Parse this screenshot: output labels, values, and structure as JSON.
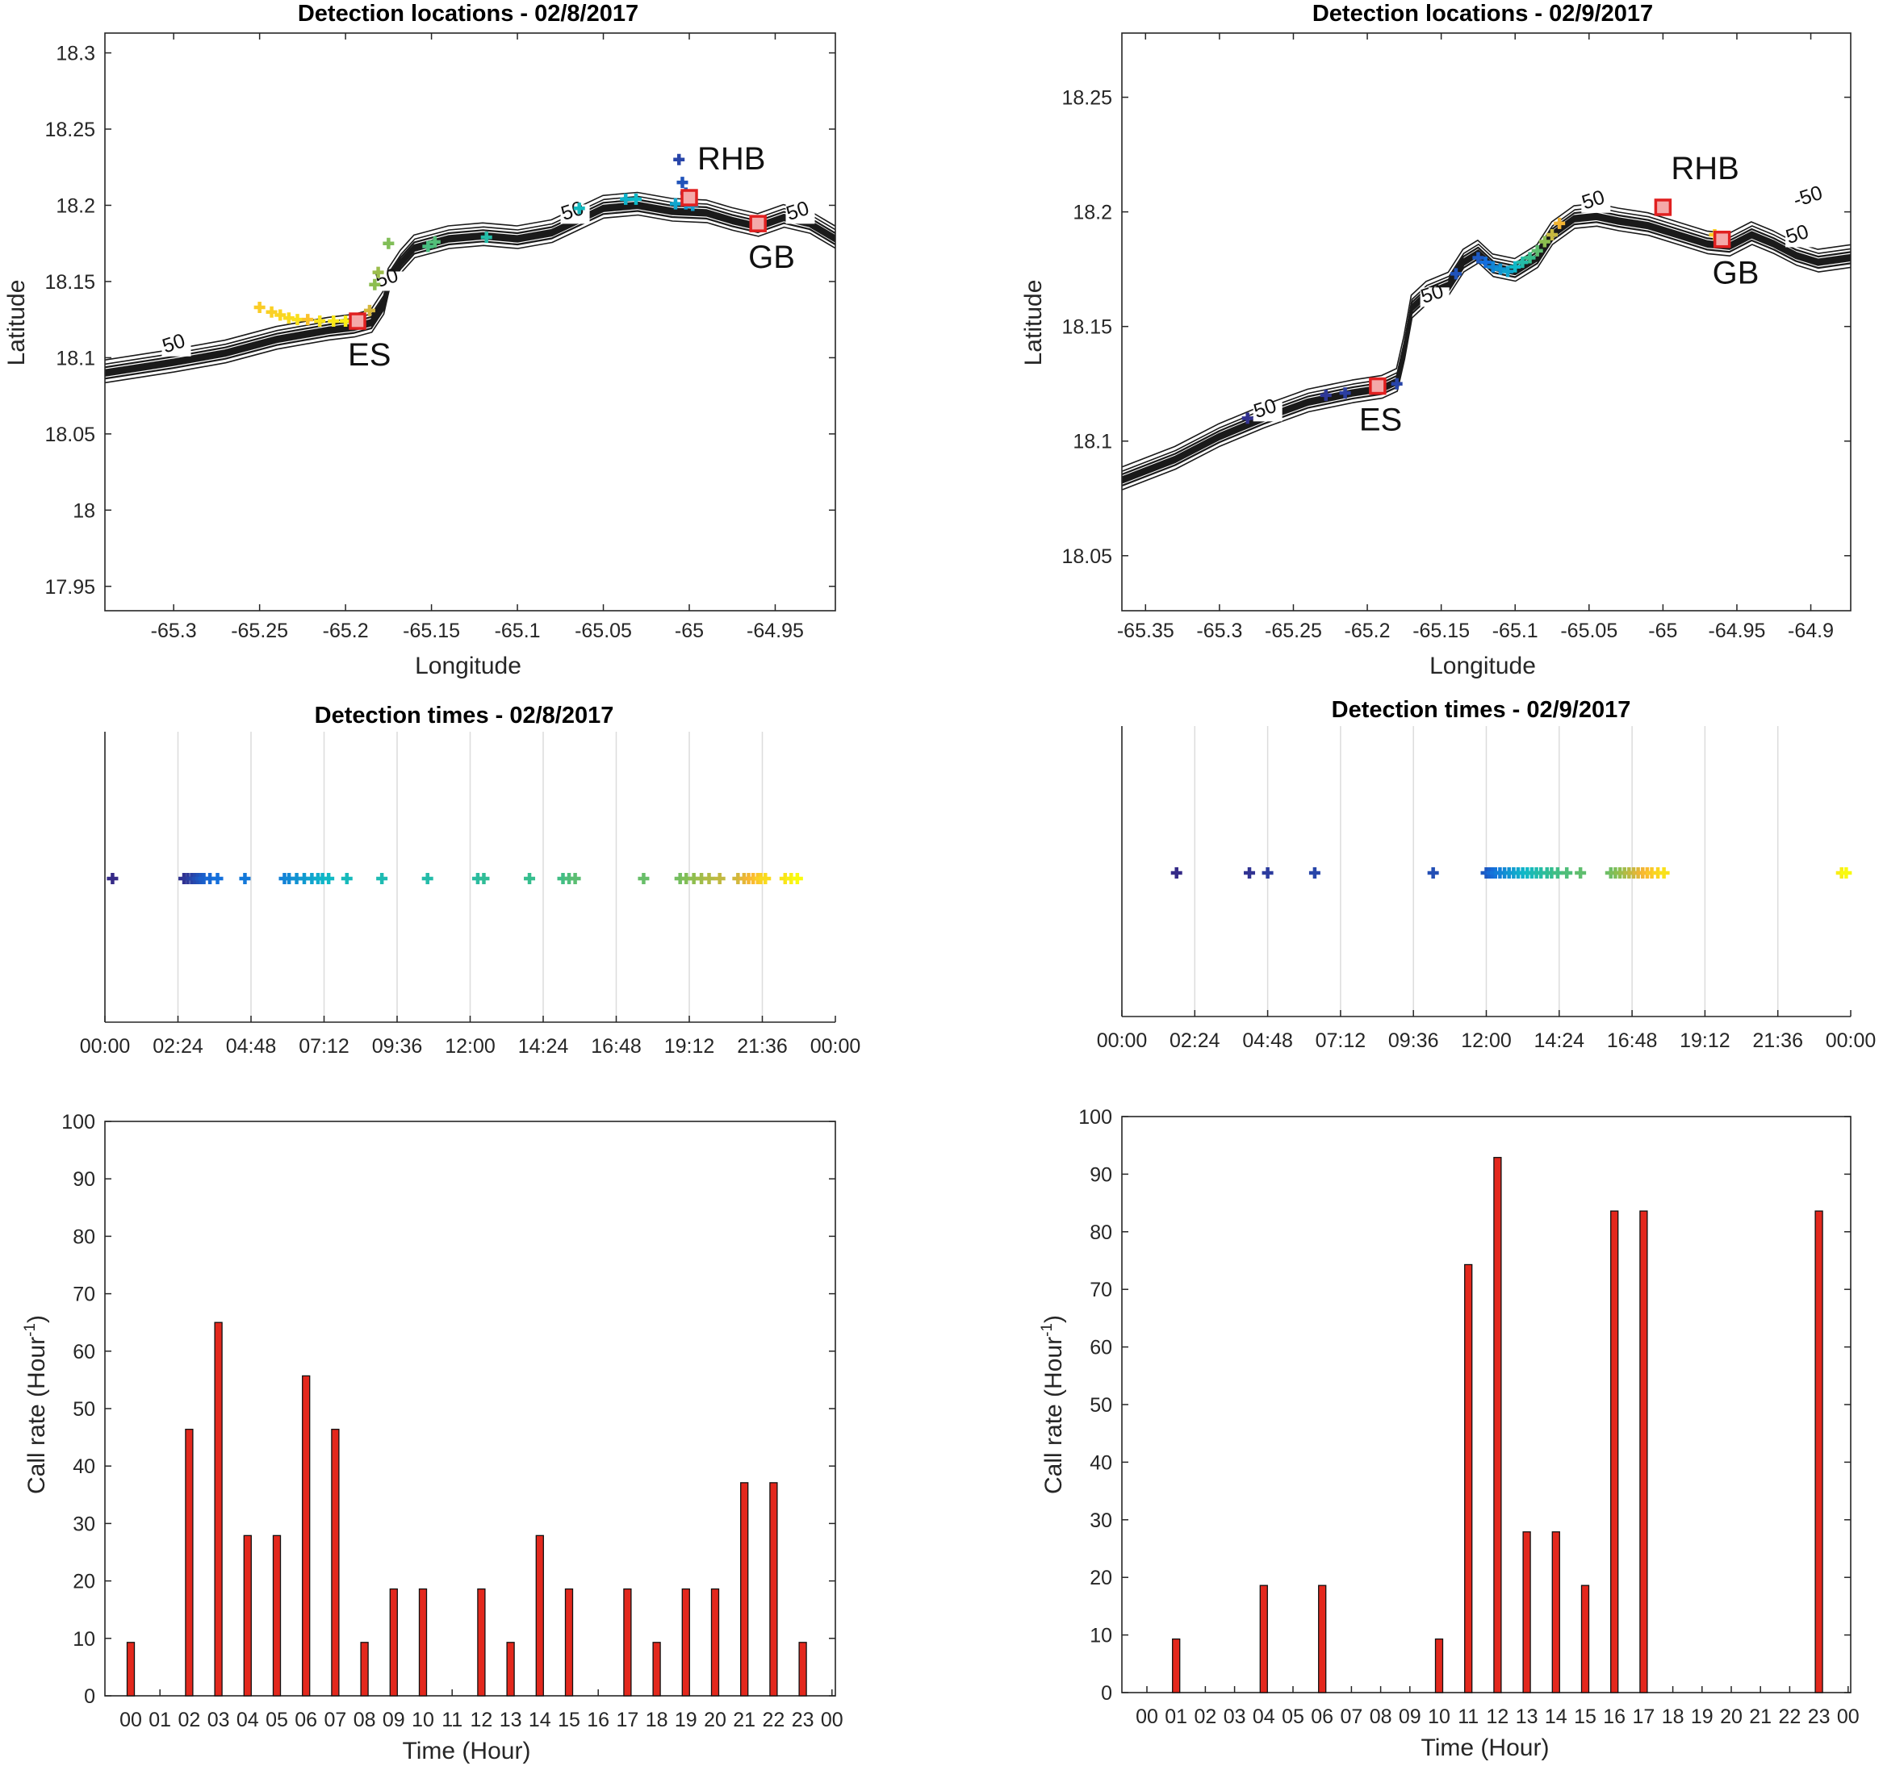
{
  "chart_data": [
    {
      "id": "map1",
      "type": "scatter",
      "title": "Detection locations - 02/8/2017",
      "xlabel": "Longitude",
      "ylabel": "Latitude",
      "xlim": [
        -65.34,
        -64.915
      ],
      "ylim": [
        17.934,
        18.313
      ],
      "xticks": [
        -65.3,
        -65.25,
        -65.2,
        -65.15,
        -65.1,
        -65.05,
        -65,
        -64.95
      ],
      "xticklabels": [
        "-65.3",
        "-65.25",
        "-65.2",
        "-65.15",
        "-65.1",
        "-65.05",
        "-65",
        "-64.95"
      ],
      "yticks": [
        17.95,
        18,
        18.05,
        18.1,
        18.15,
        18.2,
        18.25,
        18.3
      ],
      "yticklabels": [
        "17.95",
        "18",
        "18.05",
        "18.1",
        "18.15",
        "18.2",
        "18.25",
        "18.3"
      ],
      "coast": [
        [
          -65.34,
          18.09
        ],
        [
          -65.3,
          18.097
        ],
        [
          -65.27,
          18.103
        ],
        [
          -65.24,
          18.112
        ],
        [
          -65.21,
          18.118
        ],
        [
          -65.195,
          18.12
        ],
        [
          -65.185,
          18.123
        ],
        [
          -65.178,
          18.135
        ],
        [
          -65.175,
          18.15
        ],
        [
          -65.168,
          18.162
        ],
        [
          -65.16,
          18.172
        ],
        [
          -65.14,
          18.178
        ],
        [
          -65.12,
          18.18
        ],
        [
          -65.1,
          18.178
        ],
        [
          -65.08,
          18.182
        ],
        [
          -65.065,
          18.19
        ],
        [
          -65.05,
          18.198
        ],
        [
          -65.03,
          18.2
        ],
        [
          -65.01,
          18.196
        ],
        [
          -64.99,
          18.195
        ],
        [
          -64.975,
          18.19
        ],
        [
          -64.96,
          18.186
        ],
        [
          -64.945,
          18.192
        ],
        [
          -64.93,
          18.188
        ],
        [
          -64.915,
          18.178
        ]
      ],
      "contour_labels": [
        {
          "lon": -65.305,
          "lat": 18.103,
          "text": "50"
        },
        {
          "lon": -65.181,
          "lat": 18.146,
          "text": "50"
        },
        {
          "lon": -65.073,
          "lat": 18.19,
          "text": "50"
        },
        {
          "lon": -64.942,
          "lat": 18.19,
          "text": "50"
        }
      ],
      "sites": [
        {
          "name": "RHB",
          "lon": -65.0,
          "lat": 18.205
        },
        {
          "name": "ES",
          "lon": -65.193,
          "lat": 18.124
        },
        {
          "name": "GB",
          "lon": -64.96,
          "lat": 18.188
        }
      ],
      "detections": [
        [
          -65.25,
          18.133,
          0.9
        ],
        [
          -65.243,
          18.13,
          0.91
        ],
        [
          -65.238,
          18.128,
          0.92
        ],
        [
          -65.233,
          18.126,
          0.93
        ],
        [
          -65.228,
          18.125,
          0.94
        ],
        [
          -65.222,
          18.125,
          0.88
        ],
        [
          -65.215,
          18.124,
          0.95
        ],
        [
          -65.207,
          18.124,
          0.96
        ],
        [
          -65.2,
          18.124,
          0.97
        ],
        [
          -65.196,
          18.124,
          0.98
        ],
        [
          -65.183,
          18.148,
          0.7
        ],
        [
          -65.181,
          18.156,
          0.72
        ],
        [
          -65.186,
          18.131,
          0.8
        ],
        [
          -65.175,
          18.175,
          0.68
        ],
        [
          -65.152,
          18.173,
          0.58
        ],
        [
          -65.148,
          18.176,
          0.6
        ],
        [
          -65.118,
          18.179,
          0.48
        ],
        [
          -65.064,
          18.198,
          0.42
        ],
        [
          -65.037,
          18.204,
          0.38
        ],
        [
          -65.031,
          18.204,
          0.4
        ],
        [
          -65.008,
          18.201,
          0.35
        ],
        [
          -65.002,
          18.201,
          0.32
        ],
        [
          -64.999,
          18.203,
          0.36
        ],
        [
          -65.006,
          18.23,
          0.08
        ],
        [
          -65.004,
          18.215,
          0.12
        ],
        [
          -65.002,
          18.208,
          0.15
        ],
        [
          -65.0,
          18.202,
          0.3
        ],
        [
          -64.998,
          18.2,
          0.33
        ]
      ]
    },
    {
      "id": "map2",
      "type": "scatter",
      "title": "Detection locations - 02/9/2017",
      "xlabel": "Longitude",
      "ylabel": "Latitude",
      "xlim": [
        -65.366,
        -64.873
      ],
      "ylim": [
        18.026,
        18.278
      ],
      "xticks": [
        -65.35,
        -65.3,
        -65.25,
        -65.2,
        -65.15,
        -65.1,
        -65.05,
        -65,
        -64.95,
        -64.9
      ],
      "xticklabels": [
        "-65.35",
        "-65.3",
        "-65.25",
        "-65.2",
        "-65.15",
        "-65.1",
        "-65.05",
        "-65",
        "-64.95",
        "-64.9"
      ],
      "yticks": [
        18.05,
        18.1,
        18.15,
        18.2,
        18.25
      ],
      "yticklabels": [
        "18.05",
        "18.1",
        "18.15",
        "18.2",
        "18.25"
      ],
      "coast": [
        [
          -65.366,
          18.083
        ],
        [
          -65.33,
          18.092
        ],
        [
          -65.3,
          18.102
        ],
        [
          -65.27,
          18.11
        ],
        [
          -65.24,
          18.117
        ],
        [
          -65.21,
          18.121
        ],
        [
          -65.19,
          18.123
        ],
        [
          -65.18,
          18.126
        ],
        [
          -65.175,
          18.14
        ],
        [
          -65.17,
          18.158
        ],
        [
          -65.16,
          18.164
        ],
        [
          -65.145,
          18.168
        ],
        [
          -65.135,
          18.178
        ],
        [
          -65.125,
          18.182
        ],
        [
          -65.115,
          18.176
        ],
        [
          -65.1,
          18.174
        ],
        [
          -65.085,
          18.18
        ],
        [
          -65.075,
          18.19
        ],
        [
          -65.06,
          18.197
        ],
        [
          -65.045,
          18.198
        ],
        [
          -65.03,
          18.196
        ],
        [
          -65.01,
          18.194
        ],
        [
          -64.99,
          18.19
        ],
        [
          -64.97,
          18.186
        ],
        [
          -64.955,
          18.185
        ],
        [
          -64.94,
          18.19
        ],
        [
          -64.925,
          18.186
        ],
        [
          -64.91,
          18.181
        ],
        [
          -64.895,
          18.178
        ],
        [
          -64.873,
          18.18
        ]
      ],
      "contour_labels": [
        {
          "lon": -65.275,
          "lat": 18.11,
          "text": "50"
        },
        {
          "lon": -65.162,
          "lat": 18.16,
          "text": "50"
        },
        {
          "lon": -65.053,
          "lat": 18.201,
          "text": "50"
        },
        {
          "lon": -64.91,
          "lat": 18.202,
          "text": "-50"
        },
        {
          "lon": -64.915,
          "lat": 18.186,
          "text": "50"
        }
      ],
      "sites": [
        {
          "name": "RHB",
          "lon": -65.0,
          "lat": 18.202
        },
        {
          "name": "ES",
          "lon": -65.193,
          "lat": 18.124
        },
        {
          "name": "GB",
          "lon": -64.96,
          "lat": 18.188
        }
      ],
      "detections": [
        [
          -65.281,
          18.11,
          0.02
        ],
        [
          -65.228,
          18.12,
          0.04
        ],
        [
          -65.215,
          18.121,
          0.06
        ],
        [
          -65.18,
          18.125,
          0.08
        ],
        [
          -65.14,
          18.173,
          0.12
        ],
        [
          -65.125,
          18.18,
          0.14
        ],
        [
          -65.12,
          18.178,
          0.2
        ],
        [
          -65.115,
          18.176,
          0.26
        ],
        [
          -65.11,
          18.175,
          0.3
        ],
        [
          -65.105,
          18.174,
          0.34
        ],
        [
          -65.1,
          18.176,
          0.4
        ],
        [
          -65.095,
          18.178,
          0.48
        ],
        [
          -65.09,
          18.18,
          0.55
        ],
        [
          -65.085,
          18.183,
          0.62
        ],
        [
          -65.08,
          18.187,
          0.7
        ],
        [
          -65.075,
          18.19,
          0.78
        ],
        [
          -65.07,
          18.195,
          0.84
        ],
        [
          -64.965,
          18.19,
          0.9
        ],
        [
          -64.96,
          18.189,
          0.95
        ]
      ]
    },
    {
      "id": "times1",
      "type": "scatter",
      "title": "Detection times - 02/8/2017",
      "xlim": [
        0,
        24
      ],
      "xticks": [
        0,
        2.4,
        4.8,
        7.2,
        9.6,
        12,
        14.4,
        16.8,
        19.2,
        21.6,
        24
      ],
      "xticklabels": [
        "00:00",
        "02:24",
        "04:48",
        "07:12",
        "09:36",
        "12:00",
        "14:24",
        "16:48",
        "19:12",
        "21:36",
        "00:00"
      ],
      "times": [
        0.25,
        2.6,
        2.72,
        2.85,
        2.95,
        3.05,
        3.15,
        3.25,
        3.45,
        3.7,
        4.6,
        5.9,
        6.05,
        6.3,
        6.55,
        6.8,
        7.0,
        7.15,
        7.35,
        7.95,
        9.1,
        10.6,
        12.25,
        12.45,
        13.95,
        15.05,
        15.25,
        15.45,
        17.7,
        18.9,
        19.1,
        19.35,
        19.6,
        19.85,
        20.2,
        20.8,
        21.0,
        21.15,
        21.3,
        21.45,
        21.55,
        21.7,
        22.35,
        22.55,
        22.75
      ]
    },
    {
      "id": "times2",
      "type": "scatter",
      "title": "Detection times - 02/9/2017",
      "xlim": [
        0,
        24
      ],
      "xticks": [
        0,
        2.4,
        4.8,
        7.2,
        9.6,
        12,
        14.4,
        16.8,
        19.2,
        21.6,
        24
      ],
      "xticklabels": [
        "00:00",
        "02:24",
        "04:48",
        "07:12",
        "09:36",
        "12:00",
        "14:24",
        "16:48",
        "19:12",
        "21:36",
        "00:00"
      ],
      "times": [
        1.8,
        4.2,
        4.8,
        6.35,
        10.25,
        12.0,
        12.1,
        12.2,
        12.3,
        12.45,
        12.6,
        12.75,
        12.9,
        13.05,
        13.2,
        13.35,
        13.5,
        13.65,
        13.8,
        14.0,
        14.15,
        14.35,
        14.65,
        15.1,
        16.1,
        16.25,
        16.4,
        16.55,
        16.7,
        16.85,
        17.0,
        17.15,
        17.3,
        17.45,
        17.65,
        17.85,
        23.7,
        23.85
      ]
    },
    {
      "id": "rate1",
      "type": "bar",
      "xlabel": "Time (Hour)",
      "ylabel": "Call rate (Hour",
      "ylabel_sup": "-1",
      "ylabel_close": ")",
      "ylim": [
        0,
        100
      ],
      "yticks": [
        0,
        10,
        20,
        30,
        40,
        50,
        60,
        70,
        80,
        90,
        100
      ],
      "categories": [
        "00",
        "01",
        "02",
        "03",
        "04",
        "05",
        "06",
        "07",
        "08",
        "09",
        "10",
        "11",
        "12",
        "13",
        "14",
        "15",
        "16",
        "17",
        "18",
        "19",
        "20",
        "21",
        "22",
        "23",
        "00"
      ],
      "values": [
        9.3,
        0,
        46.4,
        65,
        27.9,
        27.9,
        55.7,
        46.4,
        9.3,
        18.6,
        18.6,
        0,
        18.6,
        9.3,
        27.9,
        18.6,
        0,
        18.6,
        9.3,
        18.6,
        18.6,
        37.1,
        37.1,
        9.3,
        0
      ]
    },
    {
      "id": "rate2",
      "type": "bar",
      "xlabel": "Time (Hour)",
      "ylabel": "Call rate (Hour",
      "ylabel_sup": "-1",
      "ylabel_close": ")",
      "ylim": [
        0,
        100
      ],
      "yticks": [
        0,
        10,
        20,
        30,
        40,
        50,
        60,
        70,
        80,
        90,
        100
      ],
      "categories": [
        "00",
        "01",
        "02",
        "03",
        "04",
        "05",
        "06",
        "07",
        "08",
        "09",
        "10",
        "11",
        "12",
        "13",
        "14",
        "15",
        "16",
        "17",
        "18",
        "19",
        "20",
        "21",
        "22",
        "23",
        "00"
      ],
      "values": [
        0,
        9.3,
        0,
        0,
        18.6,
        0,
        18.6,
        0,
        0,
        0,
        9.3,
        74.3,
        92.9,
        27.9,
        27.9,
        18.6,
        83.6,
        83.6,
        0,
        0,
        0,
        0,
        0,
        83.6,
        0
      ]
    }
  ]
}
